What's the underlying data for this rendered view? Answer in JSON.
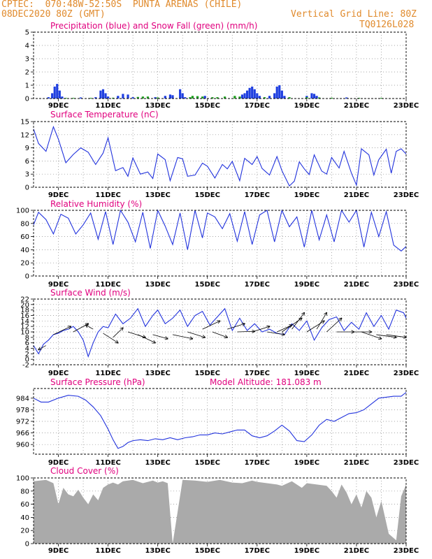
{
  "header": {
    "line1": "CPTEC:  070:48W-52:50S  PUNTA ARENAS (CHILE)",
    "line2_left": "08DEC2020 80Z (GMT)",
    "line2_right": "Vertical Grid Line: 80Z",
    "code": "TQ0126L028"
  },
  "colors": {
    "header_text": "#e08a2c",
    "title_text": "#e0007e",
    "line": "#2233dd",
    "precip": "#1f3fe0",
    "snow": "#20a020",
    "cloud_fill": "#aaaaaa",
    "grid": "#888888"
  },
  "x_ticks": [
    "9DEC",
    "11DEC",
    "13DEC",
    "15DEC",
    "17DEC",
    "19DEC",
    "21DEC",
    "23DEC"
  ],
  "chart_data": [
    {
      "id": "precip",
      "type": "bar",
      "title": "Precipitation (blue) and Snow Fall (green) (mm/h)",
      "ylim": [
        0,
        5
      ],
      "yticks": [
        "0",
        "1",
        "2",
        "3",
        "4",
        "5"
      ],
      "x_ticks": [
        "9DEC",
        "11DEC",
        "13DEC",
        "15DEC",
        "17DEC",
        "19DEC",
        "21DEC",
        "23DEC"
      ],
      "series": [
        {
          "color": "blue",
          "values": [
            [
              8.6,
              0.1
            ],
            [
              8.75,
              0.4
            ],
            [
              8.85,
              0.9
            ],
            [
              8.95,
              1.1
            ],
            [
              9.05,
              0.6
            ],
            [
              9.15,
              0.15
            ],
            [
              9.9,
              0.08
            ],
            [
              10.5,
              0.1
            ],
            [
              10.7,
              0.6
            ],
            [
              10.8,
              0.7
            ],
            [
              10.9,
              0.4
            ],
            [
              11.0,
              0.15
            ],
            [
              11.4,
              0.2
            ],
            [
              11.6,
              0.35
            ],
            [
              11.8,
              0.3
            ],
            [
              12.0,
              0.1
            ],
            [
              12.9,
              0.1
            ],
            [
              13.3,
              0.2
            ],
            [
              13.5,
              0.3
            ],
            [
              13.6,
              0.25
            ],
            [
              13.9,
              0.7
            ],
            [
              14.0,
              0.4
            ],
            [
              14.1,
              0.1
            ],
            [
              14.6,
              0.15
            ],
            [
              14.9,
              0.2
            ],
            [
              16.4,
              0.3
            ],
            [
              16.5,
              0.4
            ],
            [
              16.6,
              0.6
            ],
            [
              16.7,
              0.8
            ],
            [
              16.8,
              0.9
            ],
            [
              16.9,
              0.7
            ],
            [
              17.0,
              0.4
            ],
            [
              17.1,
              0.2
            ],
            [
              17.5,
              0.2
            ],
            [
              17.7,
              0.4
            ],
            [
              17.8,
              0.9
            ],
            [
              17.9,
              1.0
            ],
            [
              18.0,
              0.6
            ],
            [
              18.1,
              0.2
            ],
            [
              19.0,
              0.2
            ],
            [
              19.2,
              0.4
            ],
            [
              19.3,
              0.35
            ],
            [
              19.4,
              0.2
            ],
            [
              20.6,
              0.08
            ]
          ]
        },
        {
          "color": "green",
          "values": [
            [
              9.3,
              0.05
            ],
            [
              9.6,
              0.05
            ],
            [
              10.3,
              0.05
            ],
            [
              11.2,
              0.06
            ],
            [
              12.2,
              0.12
            ],
            [
              12.4,
              0.15
            ],
            [
              12.6,
              0.15
            ],
            [
              13.0,
              0.08
            ],
            [
              14.3,
              0.1
            ],
            [
              14.4,
              0.2
            ],
            [
              14.6,
              0.18
            ],
            [
              14.8,
              0.15
            ],
            [
              15.2,
              0.1
            ],
            [
              15.4,
              0.1
            ],
            [
              15.7,
              0.15
            ],
            [
              16.1,
              0.2
            ],
            [
              16.3,
              0.15
            ],
            [
              17.3,
              0.1
            ],
            [
              18.3,
              0.1
            ],
            [
              19.0,
              0.1
            ],
            [
              19.5,
              0.08
            ],
            [
              20.0,
              0.06
            ],
            [
              21.1,
              0.05
            ],
            [
              22.0,
              0.05
            ]
          ]
        }
      ]
    },
    {
      "id": "temp",
      "type": "line",
      "title": "Surface Temperature (nC)",
      "ylim": [
        0,
        15
      ],
      "yticks": [
        "0",
        "3",
        "6",
        "9",
        "12",
        "15"
      ],
      "x_ticks": [
        "9DEC",
        "11DEC",
        "13DEC",
        "15DEC",
        "17DEC",
        "19DEC",
        "21DEC",
        "23DEC"
      ],
      "x": [
        8.0,
        8.2,
        8.5,
        8.8,
        9.0,
        9.3,
        9.6,
        9.9,
        10.2,
        10.5,
        10.8,
        11.0,
        11.3,
        11.6,
        11.8,
        12.0,
        12.3,
        12.6,
        12.8,
        13.0,
        13.3,
        13.5,
        13.8,
        14.0,
        14.2,
        14.5,
        14.8,
        15.0,
        15.3,
        15.6,
        15.8,
        16.0,
        16.3,
        16.5,
        16.8,
        17.0,
        17.2,
        17.5,
        17.8,
        18.0,
        18.3,
        18.5,
        18.7,
        18.9,
        19.1,
        19.3,
        19.6,
        19.8,
        20.0,
        20.3,
        20.5,
        20.8,
        21.0,
        21.2,
        21.5,
        21.7,
        21.9,
        22.2,
        22.4,
        22.6,
        22.8,
        23.0
      ],
      "y": [
        13.3,
        10.0,
        8.2,
        13.8,
        11.0,
        5.6,
        7.5,
        9.0,
        8.0,
        5.2,
        7.8,
        11.3,
        3.8,
        4.5,
        2.5,
        6.7,
        3.0,
        3.5,
        2.0,
        7.6,
        6.3,
        1.5,
        6.8,
        6.5,
        2.5,
        2.8,
        5.5,
        4.8,
        2.1,
        5.2,
        4.2,
        5.9,
        1.5,
        6.6,
        5.2,
        7.0,
        4.3,
        2.8,
        7.0,
        3.8,
        0.3,
        1.4,
        5.8,
        4.2,
        2.9,
        7.4,
        3.7,
        3.0,
        6.8,
        4.4,
        8.2,
        3.2,
        0.5,
        8.8,
        7.4,
        2.8,
        6.3,
        8.7,
        3.2,
        8.2,
        8.8,
        7.6
      ]
    },
    {
      "id": "rh",
      "type": "line",
      "title": "Relative Humidity (%)",
      "ylim": [
        0,
        100
      ],
      "yticks": [
        "0",
        "20",
        "40",
        "60",
        "80",
        "100"
      ],
      "x_ticks": [
        "9DEC",
        "11DEC",
        "13DEC",
        "15DEC",
        "17DEC",
        "19DEC",
        "21DEC",
        "23DEC"
      ],
      "x": [
        8.0,
        8.2,
        8.5,
        8.8,
        9.1,
        9.4,
        9.7,
        10.0,
        10.3,
        10.6,
        10.9,
        11.2,
        11.5,
        11.8,
        12.1,
        12.4,
        12.7,
        13.0,
        13.3,
        13.6,
        13.9,
        14.2,
        14.5,
        14.8,
        15.0,
        15.3,
        15.6,
        15.9,
        16.2,
        16.5,
        16.8,
        17.1,
        17.4,
        17.7,
        18.0,
        18.3,
        18.6,
        18.9,
        19.2,
        19.5,
        19.8,
        20.1,
        20.4,
        20.7,
        21.0,
        21.3,
        21.6,
        21.9,
        22.2,
        22.5,
        22.8,
        23.0
      ],
      "y": [
        78,
        97,
        86,
        64,
        94,
        88,
        64,
        78,
        96,
        56,
        98,
        48,
        100,
        82,
        52,
        97,
        42,
        100,
        76,
        48,
        96,
        40,
        100,
        58,
        96,
        90,
        72,
        95,
        53,
        98,
        48,
        93,
        100,
        52,
        100,
        75,
        90,
        44,
        100,
        55,
        93,
        52,
        100,
        82,
        100,
        44,
        97,
        60,
        98,
        47,
        38,
        45
      ]
    },
    {
      "id": "wind",
      "type": "line",
      "title": "Surface Wind (m/s)",
      "ylim": [
        -2,
        22
      ],
      "yticks": [
        "-2",
        "0",
        "2",
        "4",
        "6",
        "8",
        "10",
        "12",
        "14",
        "16",
        "18",
        "20",
        "22"
      ],
      "x_ticks": [
        "9DEC",
        "11DEC",
        "13DEC",
        "15DEC",
        "17DEC",
        "19DEC",
        "21DEC",
        "23DEC"
      ],
      "x": [
        8.0,
        8.2,
        8.4,
        8.6,
        8.8,
        9.0,
        9.2,
        9.4,
        9.6,
        9.8,
        10.0,
        10.2,
        10.4,
        10.6,
        10.8,
        11.0,
        11.3,
        11.6,
        11.9,
        12.2,
        12.5,
        12.8,
        13.0,
        13.3,
        13.6,
        13.9,
        14.2,
        14.5,
        14.8,
        15.1,
        15.4,
        15.7,
        16.0,
        16.3,
        16.6,
        16.9,
        17.2,
        17.5,
        17.8,
        18.1,
        18.4,
        18.7,
        19.0,
        19.3,
        19.6,
        19.9,
        20.2,
        20.5,
        20.8,
        21.1,
        21.4,
        21.7,
        22.0,
        22.3,
        22.6,
        22.9,
        23.0
      ],
      "y": [
        5.0,
        2.0,
        5.5,
        7.0,
        9.0,
        9.5,
        10.5,
        11.0,
        12.0,
        10.0,
        7.0,
        1.0,
        6.0,
        10.0,
        12.0,
        11.5,
        16.5,
        13.0,
        15.0,
        18.5,
        12.0,
        16.0,
        18.0,
        13.0,
        15.0,
        18.0,
        12.0,
        16.0,
        17.5,
        12.5,
        15.5,
        18.5,
        10.5,
        15.0,
        10.5,
        13.0,
        10.0,
        11.0,
        9.5,
        9.0,
        13.0,
        10.5,
        14.0,
        7.0,
        11.5,
        14.5,
        15.5,
        10.5,
        13.5,
        11.0,
        17.0,
        12.0,
        16.0,
        11.0,
        18.0,
        17.0,
        15.0
      ]
    },
    {
      "id": "pressure",
      "type": "line",
      "title": "Surface Pressure (hPa)",
      "annotation": "Model Altitude: 181.083 m",
      "ylim": [
        955,
        989
      ],
      "yticks": [
        "960",
        "966",
        "972",
        "978",
        "984"
      ],
      "x_ticks": [
        "9DEC",
        "11DEC",
        "13DEC",
        "15DEC",
        "17DEC",
        "19DEC",
        "21DEC",
        "23DEC"
      ],
      "x": [
        8.0,
        8.3,
        8.6,
        9.0,
        9.4,
        9.8,
        10.1,
        10.4,
        10.7,
        11.0,
        11.2,
        11.4,
        11.6,
        11.8,
        12.0,
        12.3,
        12.6,
        12.9,
        13.2,
        13.5,
        13.8,
        14.1,
        14.4,
        14.7,
        15.0,
        15.3,
        15.6,
        15.9,
        16.2,
        16.5,
        16.8,
        17.1,
        17.4,
        17.7,
        18.0,
        18.3,
        18.6,
        18.9,
        19.2,
        19.5,
        19.8,
        20.1,
        20.4,
        20.7,
        21.0,
        21.3,
        21.6,
        21.9,
        22.2,
        22.5,
        22.8,
        23.0
      ],
      "y": [
        984,
        982,
        982,
        984,
        985.5,
        985,
        983,
        979.5,
        975,
        968,
        962.5,
        958,
        959,
        961,
        962,
        962.5,
        962,
        963,
        962.5,
        963.5,
        962.5,
        963.5,
        964,
        965,
        965,
        966,
        965.5,
        966.5,
        967.5,
        967.5,
        964.5,
        963.5,
        964.5,
        967,
        970,
        967,
        962,
        961.5,
        965,
        970,
        973,
        972,
        974,
        976,
        976.5,
        978,
        981,
        984,
        984.5,
        985,
        985,
        987
      ]
    },
    {
      "id": "cloud",
      "type": "area",
      "title": "Cloud Cover (%)",
      "ylim": [
        0,
        100
      ],
      "yticks": [
        "0",
        "20",
        "40",
        "60",
        "80",
        "100"
      ],
      "x_ticks": [
        "9DEC",
        "11DEC",
        "13DEC",
        "15DEC",
        "17DEC",
        "19DEC",
        "21DEC",
        "23DEC"
      ],
      "x": [
        8.0,
        8.5,
        8.8,
        9.0,
        9.2,
        9.4,
        9.6,
        9.8,
        10.0,
        10.2,
        10.4,
        10.6,
        10.8,
        11.0,
        11.2,
        11.4,
        11.6,
        11.8,
        12.0,
        12.4,
        12.8,
        13.0,
        13.2,
        13.4,
        13.6,
        14.0,
        14.5,
        15.0,
        15.5,
        16.0,
        16.4,
        16.8,
        17.0,
        17.4,
        17.8,
        18.0,
        18.4,
        18.8,
        19.0,
        19.4,
        19.8,
        20.0,
        20.2,
        20.4,
        20.6,
        20.8,
        21.0,
        21.2,
        21.4,
        21.6,
        21.8,
        22.0,
        22.3,
        22.6,
        22.8,
        23.0
      ],
      "y": [
        95,
        97,
        92,
        60,
        85,
        75,
        72,
        82,
        70,
        60,
        75,
        66,
        85,
        90,
        93,
        90,
        95,
        96,
        97,
        92,
        96,
        93,
        95,
        92,
        0,
        97,
        96,
        94,
        97,
        93,
        92,
        96,
        94,
        92,
        90,
        88,
        95,
        85,
        92,
        90,
        88,
        80,
        70,
        90,
        78,
        60,
        75,
        55,
        80,
        70,
        40,
        65,
        15,
        5,
        72,
        90
      ]
    }
  ]
}
